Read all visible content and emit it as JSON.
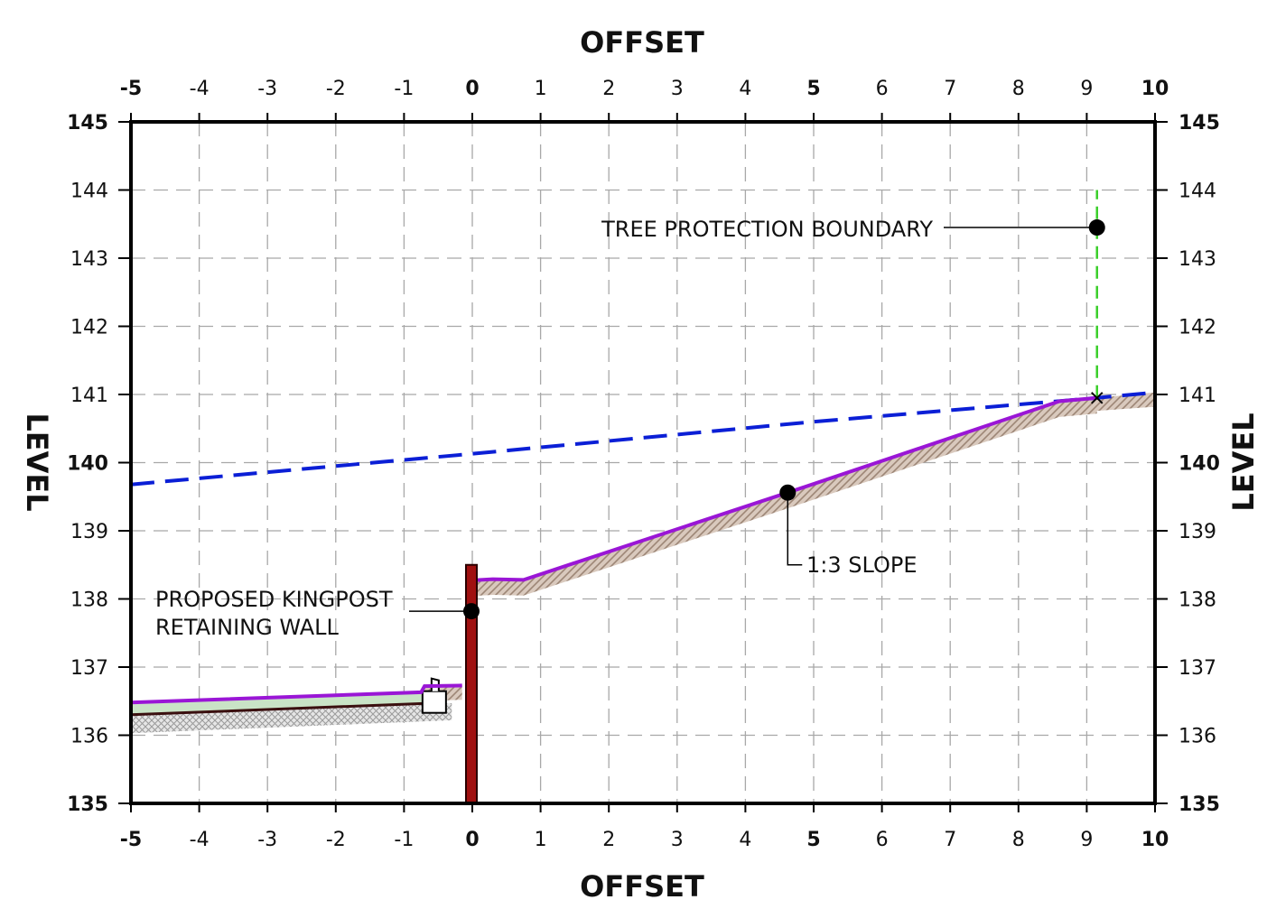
{
  "x_axis": {
    "title": "OFFSET",
    "ticks": [
      "-5",
      "-4",
      "-3",
      "-2",
      "-1",
      "0",
      "1",
      "2",
      "3",
      "4",
      "5",
      "6",
      "7",
      "8",
      "9",
      "10"
    ],
    "bold_ticks": [
      "-5",
      "0",
      "5",
      "10"
    ],
    "range": [
      -5,
      10
    ]
  },
  "y_axis": {
    "title": "LEVEL",
    "ticks": [
      "135",
      "136",
      "137",
      "138",
      "139",
      "140",
      "141",
      "142",
      "143",
      "144",
      "145"
    ],
    "bold_ticks": [
      "135",
      "140",
      "145"
    ],
    "range": [
      135,
      145
    ]
  },
  "grid": true,
  "annotations": {
    "tree_protection": "TREE PROTECTION BOUNDARY",
    "slope": "1:3 SLOPE",
    "kingpost_line1": "PROPOSED KINGPOST",
    "kingpost_line2": "RETAINING WALL"
  },
  "section": {
    "existing_ground": [
      [
        -5,
        139.68
      ],
      [
        0,
        140.13
      ],
      [
        5,
        140.6
      ],
      [
        9.15,
        140.95
      ],
      [
        10,
        141.03
      ]
    ],
    "proposed_lower": [
      [
        -5,
        136.48
      ],
      [
        -0.75,
        136.63
      ],
      [
        -0.7,
        136.72
      ],
      [
        -0.15,
        136.73
      ]
    ],
    "proposed_upper": [
      [
        -0.05,
        138.27
      ],
      [
        0.3,
        138.29
      ],
      [
        0.75,
        138.28
      ],
      [
        4.62,
        139.56
      ],
      [
        8.6,
        140.9
      ],
      [
        9.15,
        140.95
      ]
    ],
    "formation_lower": [
      [
        -5,
        136.3
      ],
      [
        -0.6,
        136.47
      ]
    ],
    "kingpost_wall": {
      "offset": 0,
      "top": 138.5,
      "bottom": 135
    },
    "tree_boundary": {
      "offset": 9.15,
      "from": 140.95,
      "to": 144
    }
  },
  "colors": {
    "existing_ground": "#0b1fd6",
    "proposed_profile": "#9a16d6",
    "hatch": "#b09a88",
    "wall": "#a01010",
    "tree_boundary": "#3bcf2a",
    "grass": "#c9e3c6"
  }
}
